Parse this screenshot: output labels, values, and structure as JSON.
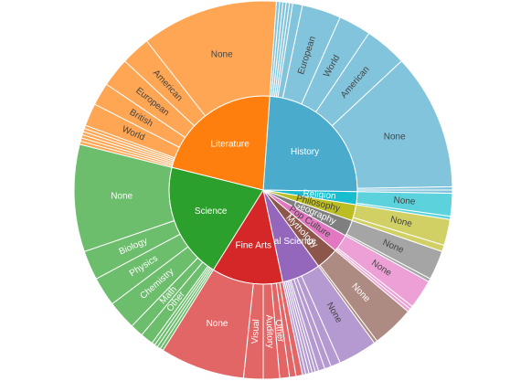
{
  "chart_data": {
    "type": "sunburst",
    "nodes": [
      {
        "name": "History",
        "value": 87,
        "color": "#4aabcc",
        "outer_color": "#82c4dc",
        "children": [
          {
            "name": null,
            "value": 1
          },
          {
            "name": null,
            "value": 1
          },
          {
            "name": null,
            "value": 1
          },
          {
            "name": null,
            "value": 1
          },
          {
            "name": null,
            "value": 1
          },
          {
            "name": null,
            "value": 3
          },
          {
            "name": "European",
            "value": 12
          },
          {
            "name": "World",
            "value": 10
          },
          {
            "name": "American",
            "value": 13
          },
          {
            "name": "None",
            "value": 42
          },
          {
            "name": null,
            "value": 1
          },
          {
            "name": null,
            "value": 1
          }
        ]
      },
      {
        "name": "Religion",
        "value": 8,
        "color": "#17becf",
        "outer_color": "#5cd2dd",
        "children": [
          {
            "name": "None",
            "value": 7
          },
          {
            "name": null,
            "value": 1
          }
        ]
      },
      {
        "name": "Philosophy",
        "value": 10,
        "color": "#bcbd22",
        "outer_color": "#d0d064",
        "children": [
          {
            "name": "None",
            "value": 8
          },
          {
            "name": null,
            "value": 2
          }
        ]
      },
      {
        "name": "Geography",
        "value": 10,
        "color": "#7f7f7f",
        "outer_color": "#a5a5a5",
        "children": [
          {
            "name": "None",
            "value": 9
          },
          {
            "name": null,
            "value": 1
          }
        ]
      },
      {
        "name": "Pop Culture",
        "value": 11,
        "color": "#e377c2",
        "outer_color": "#eca0d6",
        "children": [
          {
            "name": "None",
            "value": 9
          },
          {
            "name": null,
            "value": 1
          },
          {
            "name": null,
            "value": 1
          }
        ]
      },
      {
        "name": "Mythology",
        "value": 14,
        "color": "#8c564b",
        "outer_color": "#ad8a82",
        "children": [
          {
            "name": "None",
            "value": 13
          },
          {
            "name": null,
            "value": 1
          }
        ]
      },
      {
        "name": "Social Science",
        "value": 24,
        "color": "#9467bd",
        "outer_color": "#b49ad1",
        "children": [
          {
            "name": "None",
            "value": 12
          },
          {
            "name": null,
            "value": 3
          },
          {
            "name": null,
            "value": 2
          },
          {
            "name": null,
            "value": 2
          },
          {
            "name": null,
            "value": 1
          },
          {
            "name": null,
            "value": 1
          },
          {
            "name": null,
            "value": 1
          },
          {
            "name": null,
            "value": 1
          },
          {
            "name": null,
            "value": 1
          }
        ]
      },
      {
        "name": "Fine Arts",
        "value": 44,
        "color": "#d62728",
        "outer_color": "#e36667",
        "children": [
          {
            "name": null,
            "value": 2
          },
          {
            "name": null,
            "value": 2
          },
          {
            "name": "Other",
            "value": 3
          },
          {
            "name": "Auditory",
            "value": 5
          },
          {
            "name": "Visual",
            "value": 6
          },
          {
            "name": "None",
            "value": 26
          }
        ]
      },
      {
        "name": "Science",
        "value": 72,
        "color": "#2ca02c",
        "outer_color": "#6cbd6c",
        "children": [
          {
            "name": null,
            "value": 1
          },
          {
            "name": null,
            "value": 1
          },
          {
            "name": null,
            "value": 1
          },
          {
            "name": null,
            "value": 1
          },
          {
            "name": "Other",
            "value": 4
          },
          {
            "name": "Math",
            "value": 4
          },
          {
            "name": "Chemistry",
            "value": 9
          },
          {
            "name": "Physics",
            "value": 9
          },
          {
            "name": "Biology",
            "value": 9
          },
          {
            "name": "None",
            "value": 33
          }
        ]
      },
      {
        "name": "Literature",
        "value": 80,
        "color": "#ff7f0e",
        "outer_color": "#ffa654",
        "children": [
          {
            "name": null,
            "value": 1
          },
          {
            "name": null,
            "value": 1
          },
          {
            "name": null,
            "value": 1
          },
          {
            "name": null,
            "value": 1
          },
          {
            "name": null,
            "value": 1
          },
          {
            "name": null,
            "value": 1
          },
          {
            "name": "World",
            "value": 7
          },
          {
            "name": "British",
            "value": 7
          },
          {
            "name": "European",
            "value": 9
          },
          {
            "name": "American",
            "value": 9
          },
          {
            "name": "None",
            "value": 42
          }
        ]
      }
    ]
  }
}
